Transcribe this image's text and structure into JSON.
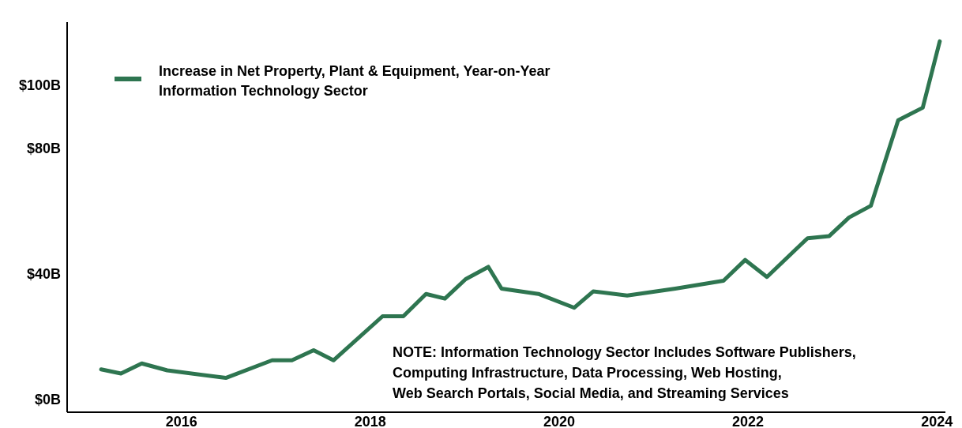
{
  "chart_data": {
    "type": "line",
    "x": [
      2015.15,
      2015.36,
      2015.58,
      2015.85,
      2016.47,
      2016.96,
      2017.17,
      2017.4,
      2017.61,
      2018.13,
      2018.35,
      2018.59,
      2018.79,
      2019.01,
      2019.25,
      2019.39,
      2019.78,
      2020.16,
      2020.36,
      2020.72,
      2021.23,
      2021.74,
      2021.97,
      2022.2,
      2022.63,
      2022.86,
      2023.07,
      2023.3,
      2023.59,
      2023.85,
      2024.03
    ],
    "series": [
      {
        "name": "Increase in Net Property, Plant & Equipment, Year-on-Year\nInformation Technology Sector",
        "color": "#2e7550",
        "values": [
          9.6,
          8.3,
          11.5,
          9.3,
          6.9,
          12.5,
          12.5,
          15.7,
          12.5,
          26.5,
          26.5,
          33.6,
          32.1,
          38.3,
          42.2,
          35.3,
          33.6,
          29.2,
          34.4,
          33.1,
          35.3,
          37.8,
          44.4,
          39.0,
          51.3,
          52.0,
          57.9,
          61.6,
          88.8,
          92.8,
          113.9
        ]
      }
    ],
    "xlim": [
      2014.79,
      2024.09
    ],
    "xticks": [
      2016,
      2018,
      2020,
      2022,
      2024
    ],
    "ylim": [
      -4,
      120
    ],
    "yticks": [
      {
        "value": 0,
        "label": "$0B"
      },
      {
        "value": 40,
        "label": "$40B"
      },
      {
        "value": 80,
        "label": "$80B"
      },
      {
        "value": 100,
        "label": "$100B"
      }
    ],
    "legend": "top left",
    "grid": false,
    "marker": "none",
    "line_style": "solid",
    "annotations": [
      "NOTE: Information Technology Sector Includes Software Publishers,\nComputing Infrastructure, Data Processing, Web Hosting,\nWeb Search Portals, Social Media, and Streaming Services"
    ]
  }
}
